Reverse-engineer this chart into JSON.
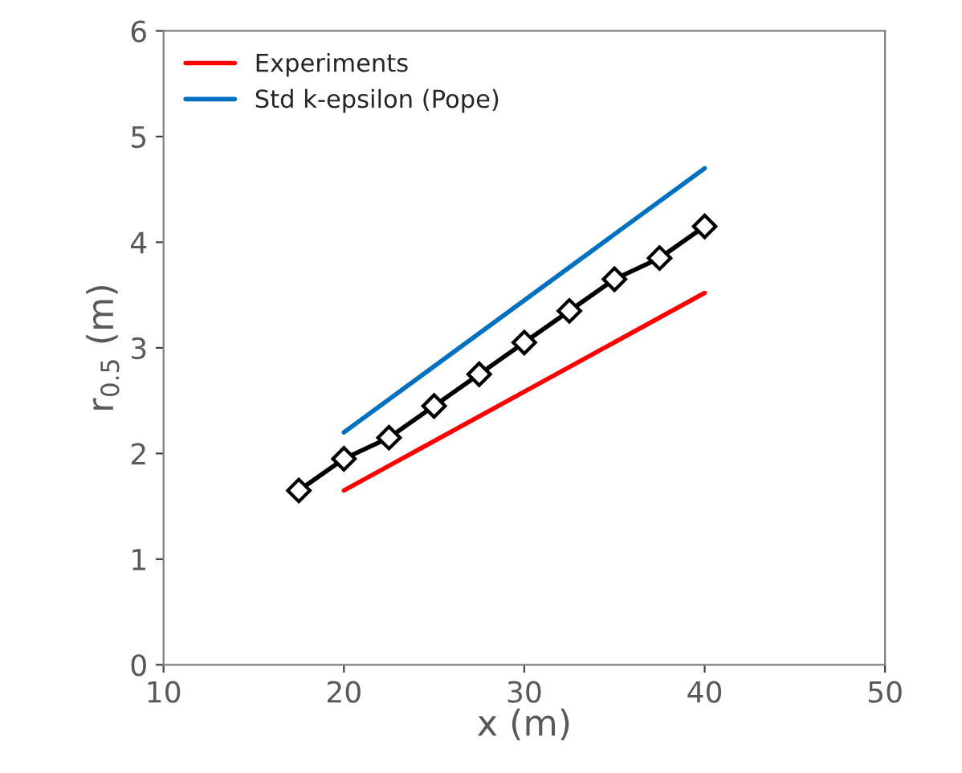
{
  "chart_data": {
    "type": "line",
    "xlabel": "x (m)",
    "ylabel": "r$_{0.5}$ (m)",
    "xlim": [
      10,
      50
    ],
    "xticks": [
      10,
      20,
      30,
      40,
      50
    ],
    "ylim": [
      0,
      6
    ],
    "yticks": [
      0,
      1,
      2,
      3,
      4,
      5,
      6
    ],
    "grid": false,
    "legend": "top left",
    "series": [
      {
        "color": "#000000",
        "marker": "diamond",
        "x": [
          17.5,
          20,
          22.5,
          25,
          27.5,
          30,
          32.5,
          35,
          37.5,
          40
        ],
        "values": [
          1.65,
          1.95,
          2.15,
          2.45,
          2.75,
          3.05,
          3.35,
          3.65,
          3.85,
          4.15
        ]
      },
      {
        "name": "Experiments",
        "color": "#ff0000",
        "x": [
          20,
          40
        ],
        "values": [
          1.65,
          3.52
        ]
      },
      {
        "name": "Std k-epsilon (Pope)",
        "color": "#0070c0",
        "x": [
          20,
          40
        ],
        "values": [
          2.2,
          4.7
        ]
      }
    ]
  }
}
